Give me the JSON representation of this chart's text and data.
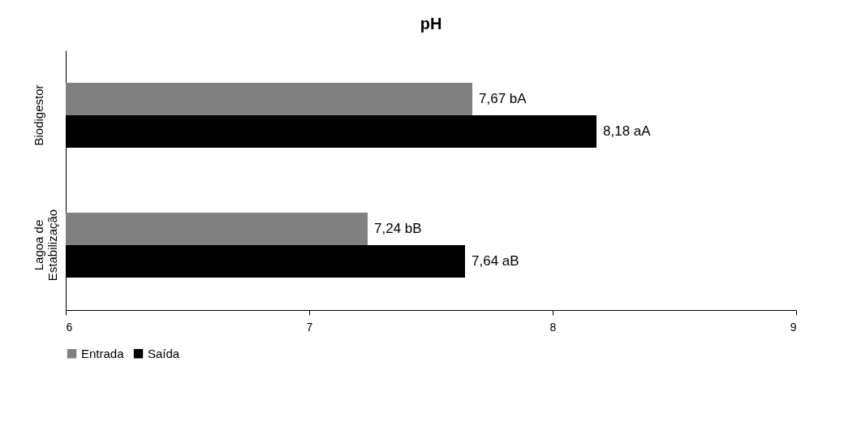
{
  "chart_data": {
    "type": "bar",
    "orientation": "horizontal",
    "title": "pH",
    "categories": [
      "Biodigestor",
      "Lagoa de Estabilização"
    ],
    "series": [
      {
        "name": "Entrada",
        "color": "#808080",
        "values": [
          7.67,
          7.24
        ],
        "value_labels": [
          "7,67 bA",
          "7,24 bB"
        ]
      },
      {
        "name": "Saída",
        "color": "#000000",
        "values": [
          8.18,
          7.64
        ],
        "value_labels": [
          "8,18 aA",
          "7,64 aB"
        ]
      }
    ],
    "xlim": [
      6,
      9
    ],
    "xticks": [
      6,
      7,
      8,
      9
    ],
    "grid": false,
    "legend": "bottom"
  }
}
